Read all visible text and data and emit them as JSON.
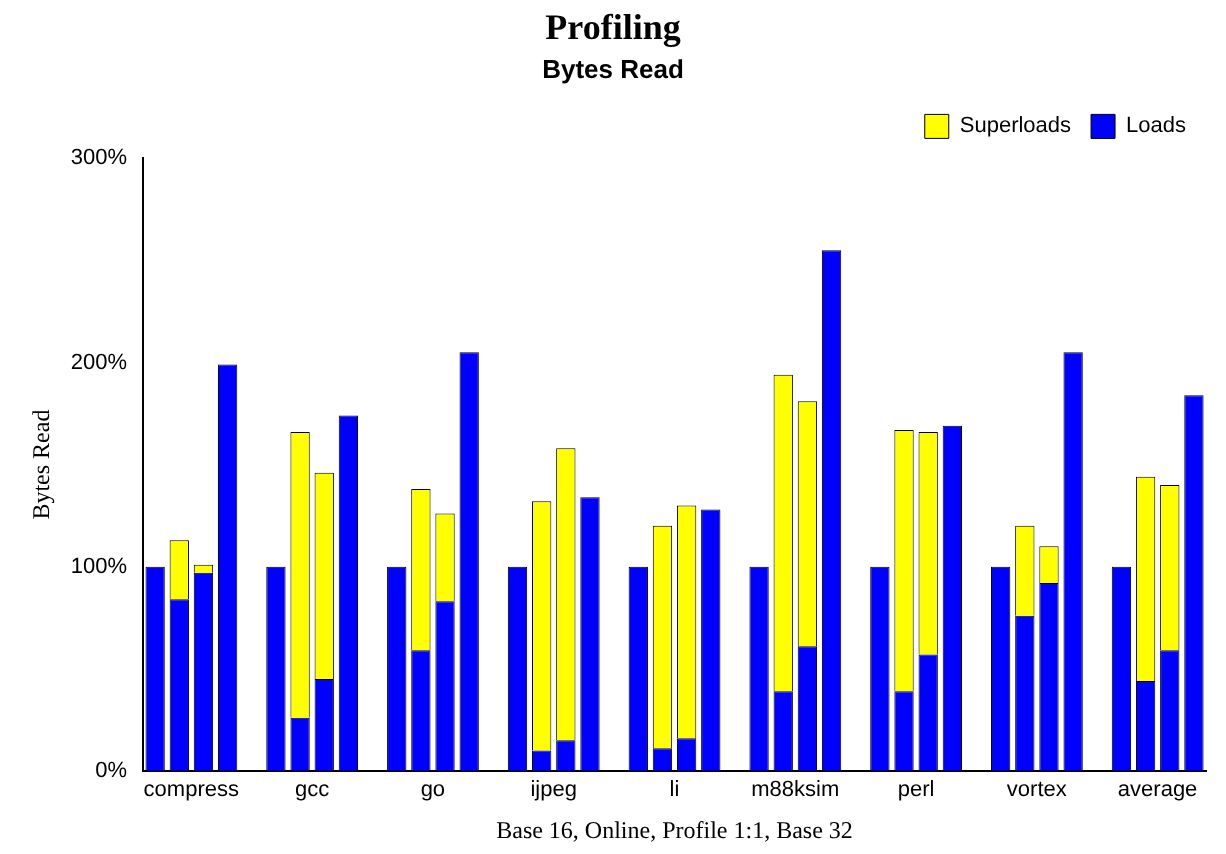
{
  "chart_data": {
    "type": "bar",
    "title": "Profiling",
    "subtitle": "Bytes Read",
    "xlabel": "Base 16, Online, Profile 1:1, Base 32",
    "ylabel": "Bytes Read",
    "categories": [
      null,
      "compress",
      null,
      null,
      null,
      null,
      "gcc",
      null,
      null,
      null,
      null,
      "go",
      null,
      null,
      null,
      null,
      "ijpeg",
      null,
      null,
      null,
      null,
      "li",
      null,
      null,
      null,
      null,
      "m88ksim",
      null,
      null,
      null,
      null,
      "perl",
      null,
      null,
      null,
      null,
      "vortex",
      null,
      null,
      null,
      null,
      "average",
      null,
      null
    ],
    "stacked": true,
    "series": [
      {
        "name": "Loads",
        "color": "#0000ff",
        "values": [
          100,
          84,
          97,
          199,
          null,
          100,
          26,
          45,
          174,
          null,
          100,
          59,
          83,
          205,
          null,
          100,
          10,
          15,
          134,
          null,
          100,
          11,
          16,
          128,
          null,
          100,
          39,
          61,
          255,
          null,
          100,
          39,
          57,
          169,
          null,
          100,
          76,
          92,
          205,
          null,
          100,
          44,
          59,
          184
        ]
      },
      {
        "name": "Superloads",
        "color": "#ffff00",
        "values": [
          null,
          29,
          4,
          null,
          null,
          null,
          140,
          101,
          null,
          null,
          null,
          79,
          43,
          null,
          null,
          null,
          122,
          143,
          null,
          null,
          null,
          109,
          114,
          null,
          null,
          null,
          155,
          120,
          null,
          null,
          null,
          128,
          109,
          null,
          null,
          null,
          44,
          18,
          null,
          null,
          null,
          100,
          81,
          null
        ]
      }
    ],
    "ylim": [
      0,
      300
    ],
    "yticks": [
      {
        "value": 0,
        "label": "0%"
      },
      {
        "value": 100,
        "label": "100%"
      },
      {
        "value": 200,
        "label": "200%"
      },
      {
        "value": 300,
        "label": "300%"
      }
    ],
    "grid": false,
    "legend": "top right"
  }
}
